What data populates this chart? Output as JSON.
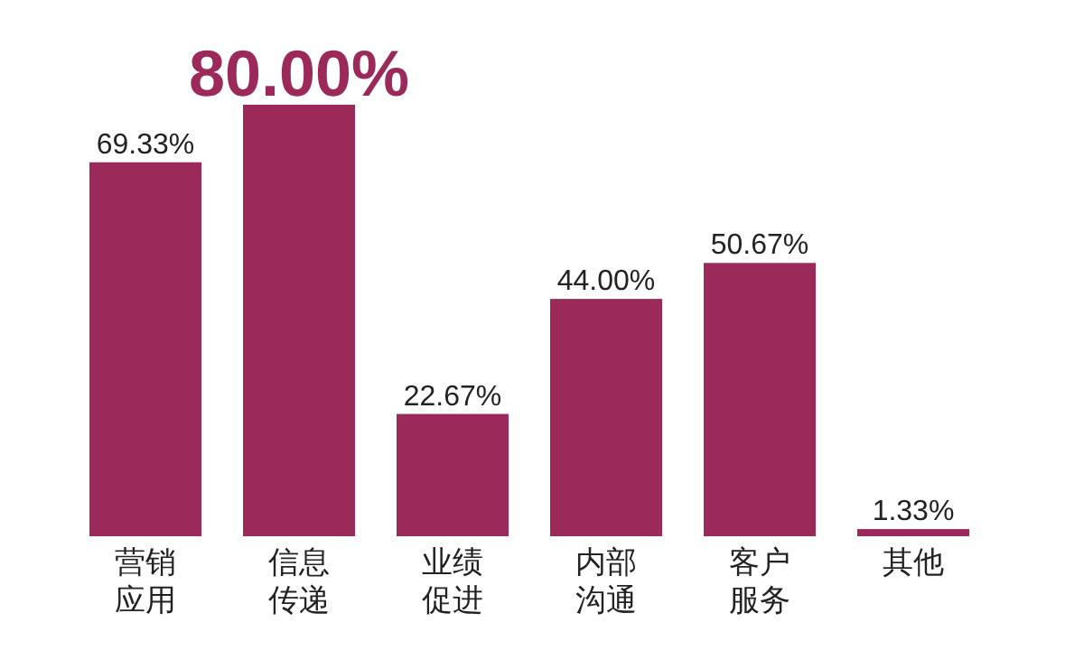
{
  "chart_data": {
    "type": "bar",
    "categories": [
      "营销应用",
      "信息传递",
      "业绩促进",
      "内部沟通",
      "客户服务",
      "其他"
    ],
    "series": [
      {
        "color": "#9b2a5a",
        "values": [
          69.33,
          80.0,
          22.67,
          44.0,
          50.67,
          1.33
        ],
        "value_labels": [
          "69.33%",
          "80.00%",
          "22.67%",
          "44.00%",
          "50.67%",
          "1.33%"
        ]
      }
    ],
    "ylim": [
      0,
      80
    ]
  }
}
